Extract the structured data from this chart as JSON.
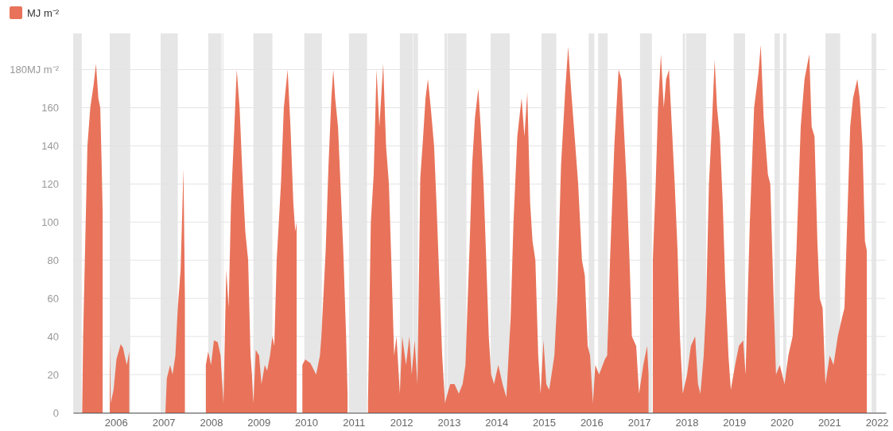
{
  "chart_data": {
    "type": "area",
    "legend": "top left",
    "grid": "y",
    "xlim": [
      2005.1,
      2022.19
    ],
    "xticks": [
      2006,
      2007,
      2008,
      2009,
      2010,
      2011,
      2012,
      2013,
      2014,
      2015,
      2016,
      2017,
      2018,
      2019,
      2020,
      2021,
      2022
    ],
    "ylim": [
      0,
      199
    ],
    "yticks": [
      0,
      20,
      40,
      60,
      80,
      100,
      120,
      140,
      160,
      {
        "value": 180,
        "label": "180MJ m⁻²"
      }
    ],
    "bands": [
      {
        "axis": "x",
        "from": 2005.1,
        "to": 2005.28,
        "color": "#e6e6e6"
      },
      {
        "axis": "x",
        "from": 2005.87,
        "to": 2006.3,
        "color": "#e6e6e6"
      },
      {
        "axis": "x",
        "from": 2006.94,
        "to": 2007.3,
        "color": "#e6e6e6"
      },
      {
        "axis": "x",
        "from": 2007.94,
        "to": 2008.22,
        "color": "#e6e6e6"
      },
      {
        "axis": "x",
        "from": 2008.24,
        "to": 2008.26,
        "color": "#e6e6e6"
      },
      {
        "axis": "x",
        "from": 2008.89,
        "to": 2009.29,
        "color": "#e6e6e6"
      },
      {
        "axis": "x",
        "from": 2009.96,
        "to": 2010.33,
        "color": "#e6e6e6"
      },
      {
        "axis": "x",
        "from": 2010.9,
        "to": 2011.28,
        "color": "#e6e6e6"
      },
      {
        "axis": "x",
        "from": 2011.97,
        "to": 2012.24,
        "color": "#e6e6e6"
      },
      {
        "axis": "x",
        "from": 2012.25,
        "to": 2012.35,
        "color": "#e6e6e6"
      },
      {
        "axis": "x",
        "from": 2012.91,
        "to": 2012.96,
        "color": "#e6e6e6"
      },
      {
        "axis": "x",
        "from": 2012.97,
        "to": 2013.37,
        "color": "#e6e6e6"
      },
      {
        "axis": "x",
        "from": 2013.88,
        "to": 2014.28,
        "color": "#e6e6e6"
      },
      {
        "axis": "x",
        "from": 2014.95,
        "to": 2015.26,
        "color": "#e6e6e6"
      },
      {
        "axis": "x",
        "from": 2015.94,
        "to": 2016.06,
        "color": "#e6e6e6"
      },
      {
        "axis": "x",
        "from": 2016.14,
        "to": 2016.34,
        "color": "#e6e6e6"
      },
      {
        "axis": "x",
        "from": 2017.02,
        "to": 2017.27,
        "color": "#e6e6e6"
      },
      {
        "axis": "x",
        "from": 2017.92,
        "to": 2017.97,
        "color": "#e6e6e6"
      },
      {
        "axis": "x",
        "from": 2017.99,
        "to": 2018.41,
        "color": "#e6e6e6"
      },
      {
        "axis": "x",
        "from": 2018.99,
        "to": 2019.23,
        "color": "#e6e6e6"
      },
      {
        "axis": "x",
        "from": 2019.85,
        "to": 2019.96,
        "color": "#e6e6e6"
      },
      {
        "axis": "x",
        "from": 2020.03,
        "to": 2020.1,
        "color": "#e6e6e6"
      },
      {
        "axis": "x",
        "from": 2020.92,
        "to": 2021.23,
        "color": "#e6e6e6"
      },
      {
        "axis": "x",
        "from": 2021.89,
        "to": 2021.99,
        "color": "#e6e6e6"
      }
    ],
    "series": [
      {
        "name": "MJ m⁻²",
        "color": "#e8735a",
        "x": [
          2005.29,
          2005.31,
          2005.35,
          2005.4,
          2005.46,
          2005.53,
          2005.58,
          2005.63,
          2005.67,
          2005.7,
          2005.72,
          2005.75,
          2005.87,
          2005.89,
          2005.95,
          2006.01,
          2006.1,
          2006.15,
          2006.2,
          2006.23,
          2006.28,
          2006.5,
          2007.04,
          2007.07,
          2007.14,
          2007.19,
          2007.25,
          2007.3,
          2007.36,
          2007.42,
          2007.45,
          2007.7,
          2007.89,
          2007.94,
          2008.0,
          2008.06,
          2008.14,
          2008.2,
          2008.26,
          2008.32,
          2008.37,
          2008.42,
          2008.49,
          2008.54,
          2008.6,
          2008.66,
          2008.72,
          2008.78,
          2008.83,
          2008.86,
          2008.89,
          2008.94,
          2009.01,
          2009.06,
          2009.13,
          2009.18,
          2009.24,
          2009.29,
          2009.33,
          2009.38,
          2009.47,
          2009.53,
          2009.61,
          2009.67,
          2009.73,
          2009.77,
          2009.8,
          2009.82,
          2009.92,
          2009.98,
          2010.09,
          2010.21,
          2010.29,
          2010.32,
          2010.41,
          2010.47,
          2010.53,
          2010.57,
          2010.61,
          2010.67,
          2010.73,
          2010.78,
          2010.84,
          2010.87,
          2010.9,
          2011.3,
          2011.36,
          2011.42,
          2011.48,
          2011.54,
          2011.62,
          2011.68,
          2011.74,
          2011.79,
          2011.85,
          2011.9,
          2011.97,
          2012.02,
          2012.1,
          2012.17,
          2012.22,
          2012.28,
          2012.34,
          2012.4,
          2012.46,
          2012.51,
          2012.56,
          2012.62,
          2012.69,
          2012.74,
          2012.8,
          2012.86,
          2012.92,
          2012.97,
          2013.03,
          2013.12,
          2013.21,
          2013.29,
          2013.35,
          2013.44,
          2013.49,
          2013.55,
          2013.62,
          2013.67,
          2013.73,
          2013.78,
          2013.84,
          2013.89,
          2013.95,
          2014.04,
          2014.13,
          2014.21,
          2014.3,
          2014.36,
          2014.44,
          2014.53,
          2014.59,
          2014.65,
          2014.71,
          2014.76,
          2014.82,
          2014.88,
          2014.93,
          2014.99,
          2015.05,
          2015.11,
          2015.16,
          2015.22,
          2015.28,
          2015.36,
          2015.45,
          2015.51,
          2015.57,
          2015.63,
          2015.72,
          2015.8,
          2015.86,
          2015.92,
          2015.97,
          2016.03,
          2016.08,
          2016.16,
          2016.28,
          2016.33,
          2016.39,
          2016.48,
          2016.57,
          2016.63,
          2016.68,
          2016.74,
          2016.8,
          2016.85,
          2016.94,
          2017.0,
          2017.09,
          2017.17,
          2017.2,
          2017.22,
          2017.29,
          2017.35,
          2017.4,
          2017.46,
          2017.52,
          2017.57,
          2017.63,
          2017.69,
          2017.75,
          2017.81,
          2017.86,
          2017.92,
          2018.01,
          2018.09,
          2018.18,
          2018.24,
          2018.29,
          2018.36,
          2018.41,
          2018.47,
          2018.53,
          2018.59,
          2018.64,
          2018.7,
          2018.76,
          2018.81,
          2018.88,
          2018.93,
          2019.02,
          2019.1,
          2019.19,
          2019.24,
          2019.33,
          2019.42,
          2019.51,
          2019.56,
          2019.62,
          2019.71,
          2019.76,
          2019.83,
          2019.88,
          2019.96,
          2020.06,
          2020.14,
          2020.23,
          2020.31,
          2020.4,
          2020.48,
          2020.58,
          2020.63,
          2020.69,
          2020.75,
          2020.8,
          2020.86,
          2020.92,
          2021.01,
          2021.09,
          2021.18,
          2021.27,
          2021.32,
          2021.39,
          2021.44,
          2021.5,
          2021.59,
          2021.64,
          2021.7,
          2021.75,
          2021.79
        ],
        "values": [
          0,
          40,
          85,
          140,
          160,
          172,
          183,
          165,
          160,
          130,
          105,
          null,
          38,
          5,
          12,
          28,
          36,
          34,
          28,
          25,
          32,
          null,
          0,
          18,
          25,
          20,
          30,
          55,
          75,
          128,
          60,
          null,
          25,
          32,
          25,
          38,
          37,
          30,
          5,
          75,
          55,
          110,
          150,
          180,
          160,
          125,
          95,
          80,
          30,
          20,
          5,
          33,
          30,
          15,
          25,
          22,
          30,
          40,
          35,
          80,
          120,
          160,
          180,
          150,
          110,
          95,
          100,
          null,
          25,
          28,
          26,
          20,
          30,
          40,
          85,
          130,
          165,
          180,
          165,
          150,
          115,
          85,
          40,
          10,
          null,
          5,
          100,
          125,
          180,
          150,
          183,
          140,
          120,
          80,
          30,
          40,
          10,
          40,
          25,
          40,
          20,
          38,
          15,
          123,
          145,
          165,
          175,
          160,
          140,
          110,
          70,
          30,
          5,
          10,
          15,
          15,
          10,
          15,
          25,
          90,
          130,
          155,
          170,
          150,
          120,
          85,
          40,
          20,
          15,
          25,
          15,
          8,
          50,
          100,
          145,
          165,
          145,
          168,
          110,
          90,
          80,
          30,
          10,
          38,
          15,
          12,
          20,
          30,
          60,
          130,
          170,
          192,
          170,
          150,
          120,
          80,
          72,
          35,
          30,
          5,
          25,
          20,
          28,
          30,
          80,
          140,
          180,
          175,
          150,
          120,
          80,
          40,
          35,
          10,
          25,
          35,
          20,
          null,
          80,
          120,
          160,
          188,
          160,
          175,
          180,
          150,
          120,
          85,
          40,
          10,
          20,
          35,
          40,
          15,
          10,
          30,
          55,
          120,
          150,
          185,
          160,
          145,
          110,
          70,
          30,
          12,
          25,
          35,
          38,
          20,
          100,
          160,
          178,
          193,
          155,
          125,
          120,
          60,
          20,
          25,
          15,
          30,
          40,
          85,
          150,
          175,
          188,
          150,
          145,
          90,
          60,
          55,
          15,
          30,
          25,
          40,
          50,
          55,
          110,
          150,
          165,
          175,
          165,
          140,
          90,
          85
        ]
      }
    ]
  }
}
